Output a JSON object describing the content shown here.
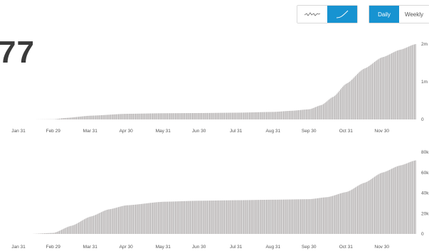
{
  "header": {
    "big_number": "77"
  },
  "toolbar": {
    "chart_style_options": [
      "sparkline-icon",
      "area-curve-icon"
    ],
    "active_chart_style": "area-curve-icon",
    "period": {
      "daily_label": "Daily",
      "weekly_label": "Weekly",
      "selected": "Daily"
    },
    "accent_color": "#1793d1"
  },
  "chart_data": [
    {
      "type": "area",
      "title": "",
      "x_labels": [
        "Jan 31",
        "Feb 29",
        "Mar 31",
        "Apr 30",
        "May 31",
        "Jun 30",
        "Jul 31",
        "Aug 31",
        "Sep 30",
        "Oct 31",
        "Nov 30"
      ],
      "y_ticks": [
        "2m",
        "1m",
        "0"
      ],
      "ylim": [
        0,
        2000000
      ],
      "color": "#b9b6b6",
      "grid": false,
      "values": [
        {
          "x": "Feb 10",
          "y": 0
        },
        {
          "x": "Feb 29",
          "y": 5000
        },
        {
          "x": "Mar 10",
          "y": 40000
        },
        {
          "x": "Mar 31",
          "y": 100000
        },
        {
          "x": "Apr 30",
          "y": 150000
        },
        {
          "x": "May 31",
          "y": 165000
        },
        {
          "x": "Jun 30",
          "y": 170000
        },
        {
          "x": "Jul 31",
          "y": 180000
        },
        {
          "x": "Aug 31",
          "y": 200000
        },
        {
          "x": "Sep 15",
          "y": 230000
        },
        {
          "x": "Sep 30",
          "y": 270000
        },
        {
          "x": "Oct 10",
          "y": 380000
        },
        {
          "x": "Oct 20",
          "y": 600000
        },
        {
          "x": "Oct 31",
          "y": 950000
        },
        {
          "x": "Nov 15",
          "y": 1350000
        },
        {
          "x": "Nov 30",
          "y": 1650000
        },
        {
          "x": "Dec 15",
          "y": 1850000
        },
        {
          "x": "Dec 28",
          "y": 2000000
        }
      ]
    },
    {
      "type": "area",
      "title": "",
      "x_labels": [
        "Jan 31",
        "Feb 29",
        "Mar 31",
        "Apr 30",
        "May 31",
        "Jun 30",
        "Jul 31",
        "Aug 31",
        "Sep 30",
        "Oct 31",
        "Nov 30"
      ],
      "y_ticks": [
        "80k",
        "60k",
        "40k",
        "20k",
        "0"
      ],
      "ylim": [
        0,
        80000
      ],
      "color": "#b9b6b6",
      "grid": false,
      "values": [
        {
          "x": "Feb 10",
          "y": 0
        },
        {
          "x": "Feb 29",
          "y": 1000
        },
        {
          "x": "Mar 15",
          "y": 8000
        },
        {
          "x": "Mar 31",
          "y": 17000
        },
        {
          "x": "Apr 15",
          "y": 24000
        },
        {
          "x": "Apr 30",
          "y": 28000
        },
        {
          "x": "May 31",
          "y": 31500
        },
        {
          "x": "Jun 30",
          "y": 32500
        },
        {
          "x": "Jul 31",
          "y": 33000
        },
        {
          "x": "Aug 31",
          "y": 33500
        },
        {
          "x": "Sep 30",
          "y": 34000
        },
        {
          "x": "Oct 15",
          "y": 36000
        },
        {
          "x": "Oct 31",
          "y": 41000
        },
        {
          "x": "Nov 15",
          "y": 50000
        },
        {
          "x": "Nov 30",
          "y": 60000
        },
        {
          "x": "Dec 15",
          "y": 67000
        },
        {
          "x": "Dec 28",
          "y": 72000
        }
      ]
    }
  ]
}
